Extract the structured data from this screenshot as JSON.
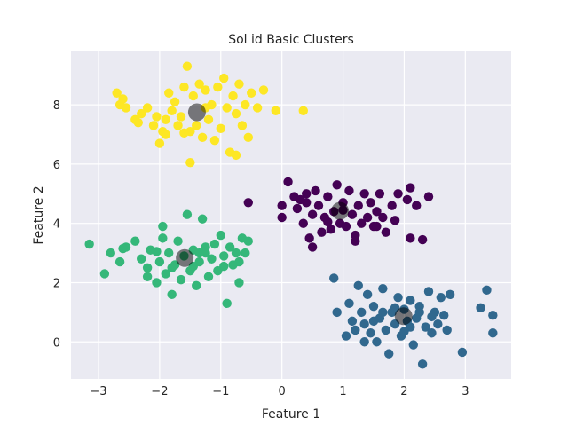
{
  "chart_data": {
    "type": "scatter",
    "title": "Sol id Basic Clusters",
    "xlabel": "Feature 1",
    "ylabel": "Feature 2",
    "xlim": [
      -3.45,
      3.75
    ],
    "ylim": [
      -1.25,
      9.8
    ],
    "xticks": [
      -3,
      -2,
      -1,
      0,
      1,
      2,
      3
    ],
    "yticks": [
      0,
      2,
      4,
      6,
      8
    ],
    "grid": true,
    "background": "#eaeaf2",
    "series": [
      {
        "color": "#fde725",
        "points": [
          [
            -2.7,
            8.4
          ],
          [
            -2.65,
            8.0
          ],
          [
            -2.6,
            8.2
          ],
          [
            -2.55,
            7.9
          ],
          [
            -2.4,
            7.5
          ],
          [
            -2.35,
            7.4
          ],
          [
            -2.2,
            7.9
          ],
          [
            -2.1,
            7.3
          ],
          [
            -2.05,
            7.6
          ],
          [
            -2.0,
            6.7
          ],
          [
            -1.95,
            7.1
          ],
          [
            -1.9,
            7.5
          ],
          [
            -1.85,
            8.4
          ],
          [
            -1.8,
            7.8
          ],
          [
            -1.75,
            8.1
          ],
          [
            -1.7,
            7.3
          ],
          [
            -1.65,
            7.6
          ],
          [
            -1.6,
            8.6
          ],
          [
            -1.55,
            9.3
          ],
          [
            -1.5,
            7.1
          ],
          [
            -1.45,
            8.3
          ],
          [
            -1.4,
            7.3
          ],
          [
            -1.35,
            8.7
          ],
          [
            -1.3,
            6.9
          ],
          [
            -1.25,
            8.5
          ],
          [
            -1.2,
            7.5
          ],
          [
            -1.15,
            8.0
          ],
          [
            -1.1,
            6.8
          ],
          [
            -1.05,
            8.6
          ],
          [
            -1.0,
            7.2
          ],
          [
            -0.95,
            8.9
          ],
          [
            -0.9,
            7.9
          ],
          [
            -0.85,
            6.4
          ],
          [
            -0.8,
            8.3
          ],
          [
            -0.75,
            7.7
          ],
          [
            -0.7,
            8.7
          ],
          [
            -0.65,
            7.3
          ],
          [
            -0.6,
            8.0
          ],
          [
            -0.55,
            6.9
          ],
          [
            -0.5,
            8.4
          ],
          [
            -0.4,
            7.9
          ],
          [
            -0.3,
            8.5
          ],
          [
            -0.1,
            7.8
          ],
          [
            -1.5,
            6.05
          ],
          [
            -1.9,
            7.0
          ],
          [
            -2.3,
            7.7
          ],
          [
            -0.75,
            6.3
          ],
          [
            -1.25,
            7.9
          ],
          [
            0.35,
            7.8
          ],
          [
            -1.6,
            7.05
          ]
        ]
      },
      {
        "color": "#440154",
        "points": [
          [
            -0.55,
            4.7
          ],
          [
            0.0,
            4.6
          ],
          [
            0.0,
            4.2
          ],
          [
            0.1,
            5.4
          ],
          [
            0.2,
            4.9
          ],
          [
            0.25,
            4.5
          ],
          [
            0.3,
            4.8
          ],
          [
            0.35,
            4.0
          ],
          [
            0.4,
            5.0
          ],
          [
            0.45,
            3.5
          ],
          [
            0.5,
            4.3
          ],
          [
            0.55,
            5.1
          ],
          [
            0.6,
            4.6
          ],
          [
            0.65,
            3.7
          ],
          [
            0.7,
            4.2
          ],
          [
            0.75,
            4.9
          ],
          [
            0.8,
            3.8
          ],
          [
            0.85,
            4.4
          ],
          [
            0.9,
            5.3
          ],
          [
            0.95,
            4.0
          ],
          [
            1.0,
            4.7
          ],
          [
            1.05,
            3.9
          ],
          [
            1.1,
            5.1
          ],
          [
            1.15,
            4.3
          ],
          [
            1.2,
            3.6
          ],
          [
            1.25,
            4.6
          ],
          [
            1.3,
            4.0
          ],
          [
            1.35,
            5.0
          ],
          [
            1.4,
            4.2
          ],
          [
            1.45,
            4.7
          ],
          [
            1.5,
            3.9
          ],
          [
            1.55,
            4.4
          ],
          [
            1.6,
            5.0
          ],
          [
            1.65,
            4.2
          ],
          [
            1.7,
            3.7
          ],
          [
            1.8,
            4.6
          ],
          [
            1.85,
            4.1
          ],
          [
            1.9,
            5.0
          ],
          [
            2.05,
            4.8
          ],
          [
            2.1,
            3.5
          ],
          [
            2.2,
            4.6
          ],
          [
            2.3,
            3.45
          ],
          [
            2.4,
            4.9
          ],
          [
            2.1,
            5.2
          ],
          [
            0.5,
            3.2
          ],
          [
            1.2,
            3.4
          ],
          [
            1.55,
            3.9
          ],
          [
            0.75,
            4.05
          ],
          [
            1.0,
            4.45
          ],
          [
            0.4,
            4.7
          ]
        ]
      },
      {
        "color": "#35b779",
        "points": [
          [
            -3.15,
            3.3
          ],
          [
            -2.9,
            2.3
          ],
          [
            -2.8,
            3.0
          ],
          [
            -2.65,
            2.7
          ],
          [
            -2.55,
            3.2
          ],
          [
            -2.4,
            3.4
          ],
          [
            -2.3,
            2.8
          ],
          [
            -2.2,
            2.5
          ],
          [
            -2.15,
            3.1
          ],
          [
            -2.05,
            2.0
          ],
          [
            -2.0,
            2.7
          ],
          [
            -1.95,
            3.5
          ],
          [
            -1.9,
            2.3
          ],
          [
            -1.85,
            3.0
          ],
          [
            -1.8,
            1.6
          ],
          [
            -1.75,
            2.6
          ],
          [
            -1.7,
            3.4
          ],
          [
            -1.65,
            2.1
          ],
          [
            -1.6,
            2.9
          ],
          [
            -1.55,
            4.3
          ],
          [
            -1.5,
            2.4
          ],
          [
            -1.45,
            3.1
          ],
          [
            -1.4,
            1.9
          ],
          [
            -1.35,
            2.7
          ],
          [
            -1.3,
            4.15
          ],
          [
            -1.25,
            3.0
          ],
          [
            -1.2,
            2.2
          ],
          [
            -1.15,
            2.8
          ],
          [
            -1.1,
            3.3
          ],
          [
            -1.05,
            2.4
          ],
          [
            -1.0,
            3.6
          ],
          [
            -0.95,
            2.9
          ],
          [
            -0.9,
            1.3
          ],
          [
            -0.85,
            3.2
          ],
          [
            -0.8,
            2.6
          ],
          [
            -0.75,
            3.0
          ],
          [
            -0.7,
            2.0
          ],
          [
            -0.65,
            3.5
          ],
          [
            -0.6,
            3.0
          ],
          [
            -0.55,
            3.4
          ],
          [
            -1.95,
            3.9
          ],
          [
            -2.2,
            2.2
          ],
          [
            -1.8,
            2.5
          ],
          [
            -2.05,
            3.05
          ],
          [
            -1.25,
            3.2
          ],
          [
            -0.95,
            2.55
          ],
          [
            -1.45,
            2.55
          ],
          [
            -0.7,
            2.7
          ],
          [
            -1.35,
            3.0
          ],
          [
            -2.6,
            3.15
          ]
        ]
      },
      {
        "color": "#31688e",
        "points": [
          [
            0.85,
            2.15
          ],
          [
            0.9,
            1.0
          ],
          [
            1.1,
            1.3
          ],
          [
            1.15,
            0.7
          ],
          [
            1.2,
            0.4
          ],
          [
            1.25,
            1.9
          ],
          [
            1.3,
            1.0
          ],
          [
            1.35,
            0.6
          ],
          [
            1.4,
            1.6
          ],
          [
            1.45,
            0.3
          ],
          [
            1.5,
            1.2
          ],
          [
            1.55,
            0.0
          ],
          [
            1.6,
            0.8
          ],
          [
            1.65,
            1.8
          ],
          [
            1.7,
            0.4
          ],
          [
            1.75,
            -0.4
          ],
          [
            1.8,
            1.0
          ],
          [
            1.85,
            0.6
          ],
          [
            1.9,
            1.5
          ],
          [
            1.95,
            0.2
          ],
          [
            2.0,
            1.1
          ],
          [
            2.05,
            0.7
          ],
          [
            2.1,
            1.4
          ],
          [
            2.15,
            -0.1
          ],
          [
            2.2,
            0.8
          ],
          [
            2.25,
            1.2
          ],
          [
            2.3,
            -0.75
          ],
          [
            2.35,
            0.5
          ],
          [
            2.4,
            1.7
          ],
          [
            2.45,
            0.3
          ],
          [
            2.5,
            1.0
          ],
          [
            2.55,
            0.6
          ],
          [
            2.6,
            1.5
          ],
          [
            2.65,
            0.9
          ],
          [
            2.7,
            0.4
          ],
          [
            2.75,
            1.6
          ],
          [
            2.95,
            -0.35
          ],
          [
            3.25,
            1.15
          ],
          [
            3.35,
            1.75
          ],
          [
            3.45,
            0.9
          ],
          [
            3.45,
            0.3
          ],
          [
            1.05,
            0.2
          ],
          [
            1.35,
            0.0
          ],
          [
            1.65,
            1.0
          ],
          [
            2.1,
            0.5
          ],
          [
            2.45,
            0.85
          ],
          [
            1.85,
            1.15
          ],
          [
            2.25,
            1.0
          ],
          [
            2.0,
            0.35
          ],
          [
            1.5,
            0.7
          ]
        ]
      }
    ],
    "centers": {
      "color": "#000000",
      "opacity": 0.5,
      "points": [
        [
          -1.39,
          7.75
        ],
        [
          0.95,
          4.42
        ],
        [
          -1.59,
          2.83
        ],
        [
          1.99,
          0.87
        ]
      ]
    }
  }
}
